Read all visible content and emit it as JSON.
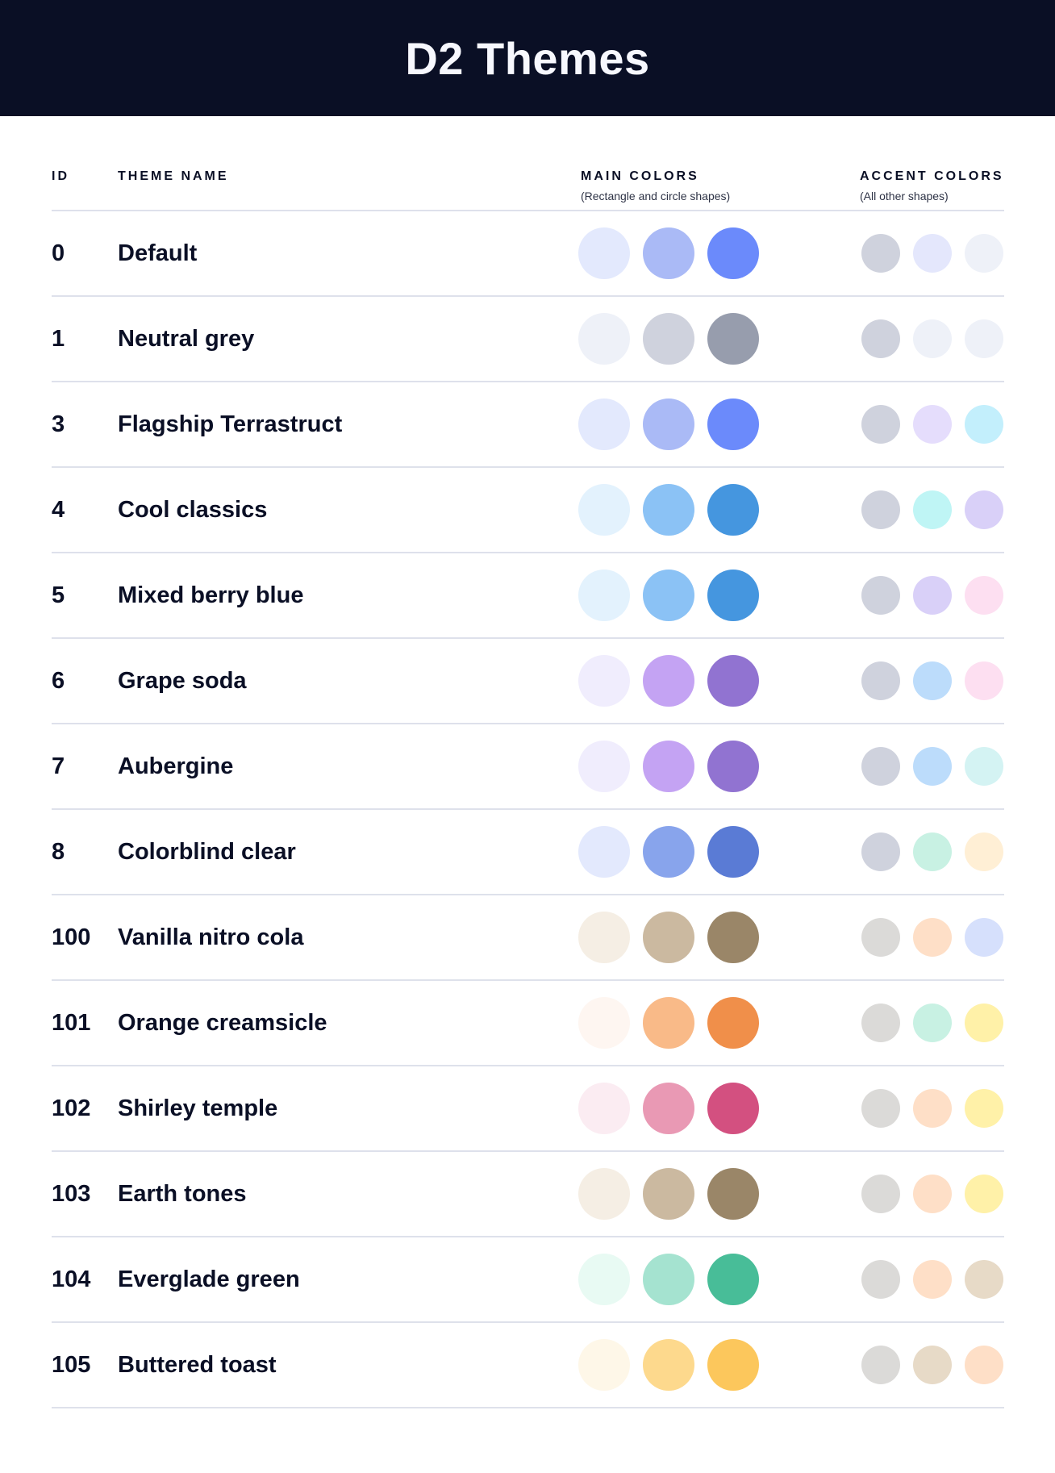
{
  "title": "D2 Themes",
  "columns": {
    "id": "ID",
    "name": "THEME NAME",
    "main": "MAIN COLORS",
    "main_sub": "(Rectangle and circle shapes)",
    "accent": "ACCENT COLORS",
    "accent_sub": "(All other shapes)"
  },
  "themes": [
    {
      "id": "0",
      "name": "Default",
      "main": [
        "#E3E9FD",
        "#AABAF6",
        "#6B8AFB"
      ],
      "accent": [
        "#CFD2DD",
        "#E4E7FC",
        "#EEF1F8"
      ]
    },
    {
      "id": "1",
      "name": "Neutral grey",
      "main": [
        "#EEF1F8",
        "#CFD2DD",
        "#979DAD"
      ],
      "accent": [
        "#CFD2DD",
        "#EEF1F8",
        "#EEF1F8"
      ]
    },
    {
      "id": "3",
      "name": "Flagship Terrastruct",
      "main": [
        "#E3E9FD",
        "#AABAF6",
        "#6B8AFB"
      ],
      "accent": [
        "#CFD2DD",
        "#E5DDFC",
        "#C3EFFC"
      ]
    },
    {
      "id": "4",
      "name": "Cool classics",
      "main": [
        "#E3F2FD",
        "#8BC2F5",
        "#4596DF"
      ],
      "accent": [
        "#CFD2DD",
        "#BFF5F5",
        "#D9D0F8"
      ]
    },
    {
      "id": "5",
      "name": "Mixed berry blue",
      "main": [
        "#E3F2FD",
        "#8BC2F5",
        "#4596DF"
      ],
      "accent": [
        "#CFD2DD",
        "#D9D0F8",
        "#FDDFF1"
      ]
    },
    {
      "id": "6",
      "name": "Grape soda",
      "main": [
        "#F0EDFD",
        "#C4A3F3",
        "#9173D1"
      ],
      "accent": [
        "#CFD2DD",
        "#BCDCFB",
        "#FDDFF1"
      ]
    },
    {
      "id": "7",
      "name": "Aubergine",
      "main": [
        "#F0EDFD",
        "#C4A3F3",
        "#9173D1"
      ],
      "accent": [
        "#CFD2DD",
        "#BCDCFB",
        "#D4F3F3"
      ]
    },
    {
      "id": "8",
      "name": "Colorblind clear",
      "main": [
        "#E3E9FD",
        "#88A4EC",
        "#5A7BD5"
      ],
      "accent": [
        "#CFD2DD",
        "#C8F1E3",
        "#FFEFD5"
      ]
    },
    {
      "id": "100",
      "name": "Vanilla nitro cola",
      "main": [
        "#F5EEE4",
        "#CBB9A0",
        "#9A8668"
      ],
      "accent": [
        "#DBDAD8",
        "#FEDFC7",
        "#D6E0FC"
      ]
    },
    {
      "id": "101",
      "name": "Orange creamsicle",
      "main": [
        "#FEF6F1",
        "#F9BA88",
        "#F08F4A"
      ],
      "accent": [
        "#DBDAD8",
        "#C8F1E3",
        "#FFF1A8"
      ]
    },
    {
      "id": "102",
      "name": "Shirley temple",
      "main": [
        "#FBECF2",
        "#E999B4",
        "#D35080"
      ],
      "accent": [
        "#DBDAD8",
        "#FEDFC7",
        "#FFF1A8"
      ]
    },
    {
      "id": "103",
      "name": "Earth tones",
      "main": [
        "#F5EEE4",
        "#CBB9A0",
        "#9A8668"
      ],
      "accent": [
        "#DBDAD8",
        "#FEDFC7",
        "#FFF1A8"
      ]
    },
    {
      "id": "104",
      "name": "Everglade green",
      "main": [
        "#E8FAF3",
        "#A5E3D0",
        "#48BD98"
      ],
      "accent": [
        "#DBDAD8",
        "#FEDFC7",
        "#E7DAC7"
      ]
    },
    {
      "id": "105",
      "name": "Buttered toast",
      "main": [
        "#FEF7E8",
        "#FDD98D",
        "#FCC75C"
      ],
      "accent": [
        "#DBDAD8",
        "#E7DAC7",
        "#FEDFC7"
      ]
    }
  ]
}
